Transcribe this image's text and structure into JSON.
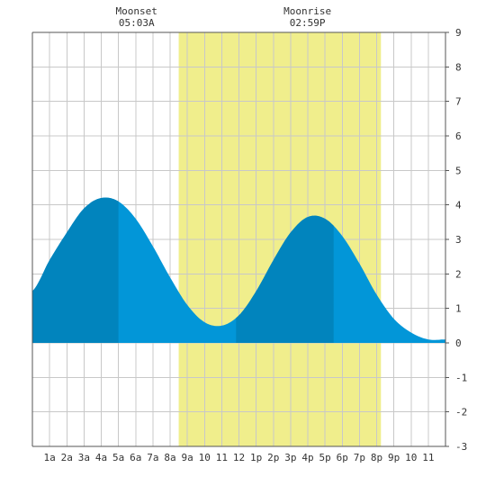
{
  "chart_data": {
    "type": "area",
    "title": "",
    "xlabel": "",
    "ylabel": "",
    "x_range_hours": [
      -1,
      23
    ],
    "ylim": [
      -3,
      9
    ],
    "x_tick_labels": [
      "1a",
      "2a",
      "3a",
      "4a",
      "5a",
      "6a",
      "7a",
      "8a",
      "9a",
      "10",
      "11",
      "12",
      "1p",
      "2p",
      "3p",
      "4p",
      "5p",
      "6p",
      "7p",
      "8p",
      "9p",
      "10",
      "11"
    ],
    "y_tick_labels": [
      "-3",
      "-2",
      "-1",
      "0",
      "1",
      "2",
      "3",
      "4",
      "5",
      "6",
      "7",
      "8",
      "9"
    ],
    "daylight_hours": [
      7.5,
      19.25
    ],
    "moon_events": [
      {
        "label": "Moonset",
        "time": "05:03A",
        "hour": 5.05
      },
      {
        "label": "Moonrise",
        "time": "02:59P",
        "hour": 14.98
      }
    ],
    "series": [
      {
        "x": [
          -1,
          0,
          1,
          2,
          3,
          4,
          5,
          6,
          7,
          8,
          9,
          10,
          11,
          12,
          13,
          14,
          15,
          16,
          17,
          18,
          19,
          20,
          21,
          22,
          23
        ],
        "y": [
          1.5,
          2.4,
          3.2,
          3.9,
          4.2,
          4.1,
          3.6,
          2.8,
          1.9,
          1.1,
          0.6,
          0.5,
          0.8,
          1.5,
          2.4,
          3.2,
          3.65,
          3.6,
          3.1,
          2.3,
          1.4,
          0.7,
          0.3,
          0.1,
          0.1
        ]
      }
    ],
    "extrema": [
      {
        "type": "high",
        "hour": 4.0,
        "value": 4.2
      },
      {
        "type": "low",
        "hour": 10.8,
        "value": 0.5
      },
      {
        "type": "high",
        "hour": 16.5,
        "value": 3.65
      }
    ],
    "colors": {
      "daylight": "#f0ee8c",
      "tide_light": "#0296d8",
      "tide_dark": "#0184bd",
      "grid": "#c8c8c8",
      "axis": "#555555",
      "text": "#333333"
    }
  }
}
